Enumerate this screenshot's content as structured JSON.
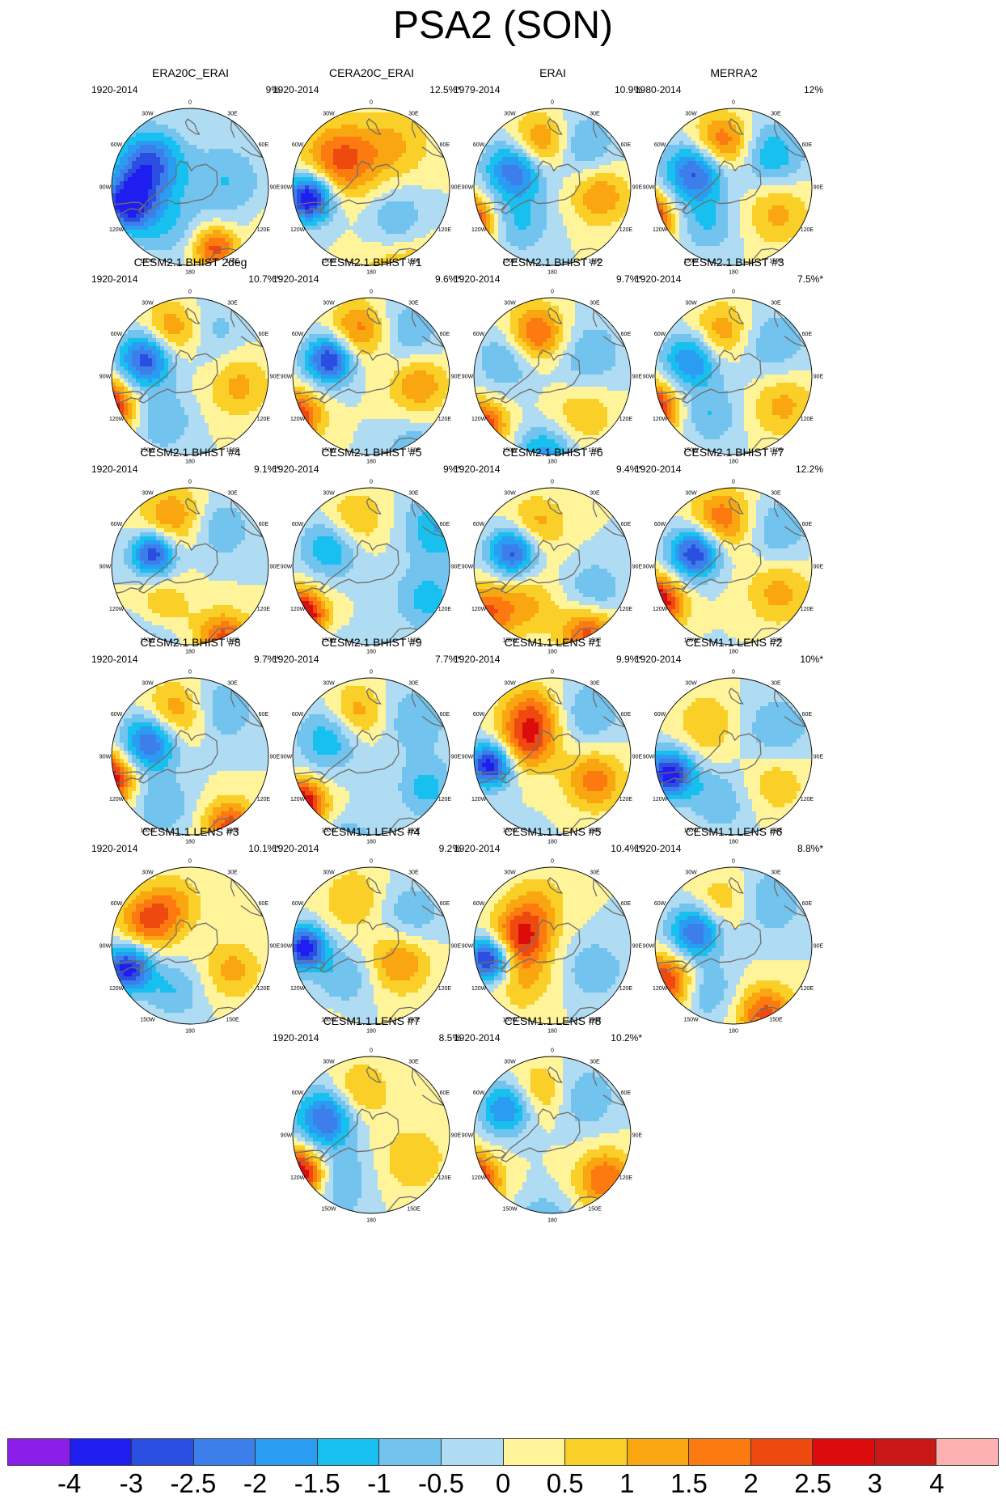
{
  "title": "PSA2 (SON)",
  "lon_labels": [
    "0",
    "30E",
    "60E",
    "90E",
    "120E",
    "150E",
    "180",
    "150W",
    "120W",
    "90W",
    "60W",
    "30W"
  ],
  "panels": [
    {
      "title": "ERA20C_ERAI",
      "period": "1920-2014",
      "pct": "9%",
      "pattern": [
        [
          80,
          -75,
          0.7,
          -3.2
        ],
        [
          150,
          62,
          0.8,
          3.0
        ],
        [
          58,
          -118,
          0.9,
          -2.8
        ],
        [
          82,
          22,
          0.6,
          2.2
        ],
        [
          55,
          -35,
          0.9,
          -1.0
        ],
        [
          45,
          100,
          1.0,
          -1.0
        ]
      ]
    },
    {
      "title": "CERA20C_ERAI",
      "period": "1920-2014",
      "pct": "12.5%*",
      "pattern": [
        [
          78,
          -80,
          0.65,
          -3.8
        ],
        [
          140,
          20,
          1.2,
          1.8
        ],
        [
          50,
          -130,
          1.0,
          2.2
        ],
        [
          50,
          40,
          0.8,
          -1.0
        ],
        [
          60,
          150,
          1.0,
          1.0
        ]
      ]
    },
    {
      "title": "ERAI",
      "period": "1979-2014",
      "pct": "10.9%",
      "pattern": [
        [
          118,
          -68,
          0.7,
          3.6
        ],
        [
          50,
          -115,
          0.8,
          -2.6
        ],
        [
          55,
          -165,
          0.8,
          2.0
        ],
        [
          60,
          -40,
          0.8,
          -1.0
        ],
        [
          60,
          80,
          0.8,
          1.5
        ],
        [
          62,
          145,
          0.9,
          -1.2
        ]
      ]
    },
    {
      "title": "MERRA2",
      "period": "1980-2014",
      "pct": "12%",
      "pattern": [
        [
          118,
          -70,
          0.7,
          3.8
        ],
        [
          50,
          -112,
          0.8,
          -2.8
        ],
        [
          55,
          -165,
          0.8,
          2.2
        ],
        [
          62,
          60,
          0.9,
          1.2
        ],
        [
          60,
          130,
          0.9,
          -1.5
        ],
        [
          55,
          -35,
          0.8,
          -1.0
        ]
      ]
    },
    {
      "title": "CESM2.1 BHIST 2deg",
      "period": "1920-2014",
      "pct": "10.7%*",
      "pattern": [
        [
          115,
          -70,
          0.75,
          3.8
        ],
        [
          58,
          -112,
          0.75,
          -3.0
        ],
        [
          58,
          -160,
          0.85,
          2.0
        ],
        [
          60,
          80,
          0.9,
          1.2
        ],
        [
          55,
          160,
          1.0,
          -1.0
        ],
        [
          65,
          -30,
          0.8,
          -1.0
        ]
      ]
    },
    {
      "title": "CESM2.1 BHIST #1",
      "period": "1920-2014",
      "pct": "9.6%*",
      "pattern": [
        [
          55,
          -112,
          0.65,
          -3.2
        ],
        [
          105,
          -62,
          0.7,
          2.5
        ],
        [
          58,
          -165,
          0.8,
          1.8
        ],
        [
          110,
          30,
          0.8,
          -1.0
        ],
        [
          60,
          80,
          0.8,
          1.5
        ],
        [
          70,
          140,
          0.9,
          -1.0
        ]
      ]
    },
    {
      "title": "CESM2.1 BHIST #2",
      "period": "1920-2014",
      "pct": "9.7%*",
      "pattern": [
        [
          110,
          -55,
          0.7,
          2.8
        ],
        [
          100,
          -5,
          0.8,
          -1.8
        ],
        [
          55,
          -160,
          0.8,
          2.2
        ],
        [
          60,
          -110,
          0.8,
          -1.2
        ],
        [
          60,
          40,
          0.9,
          1.0
        ],
        [
          50,
          120,
          1.0,
          -1.0
        ]
      ]
    },
    {
      "title": "CESM2.1 BHIST #3",
      "period": "1920-2014",
      "pct": "7.5%*",
      "pattern": [
        [
          110,
          -68,
          0.7,
          3.2
        ],
        [
          55,
          -112,
          0.75,
          -2.2
        ],
        [
          55,
          -165,
          0.8,
          1.6
        ],
        [
          70,
          60,
          0.9,
          1.2
        ],
        [
          60,
          130,
          1.0,
          -1.0
        ],
        [
          55,
          -30,
          0.8,
          -1.0
        ]
      ]
    },
    {
      "title": "CESM2.1 BHIST #4",
      "period": "1920-2014",
      "pct": "9.1%*",
      "pattern": [
        [
          48,
          -108,
          0.6,
          -3.0
        ],
        [
          100,
          25,
          0.75,
          2.2
        ],
        [
          65,
          -160,
          0.85,
          1.5
        ],
        [
          60,
          -35,
          0.8,
          1.0
        ],
        [
          60,
          140,
          0.8,
          -1.0
        ],
        [
          110,
          -30,
          0.9,
          -1.0
        ]
      ]
    },
    {
      "title": "CESM2.1 BHIST #5",
      "period": "1920-2014",
      "pct": "9%*",
      "pattern": [
        [
          108,
          -55,
          0.7,
          3.8
        ],
        [
          145,
          -25,
          0.9,
          -1.8
        ],
        [
          55,
          -115,
          0.8,
          -1.6
        ],
        [
          60,
          -160,
          0.8,
          1.2
        ],
        [
          80,
          60,
          0.9,
          -1.2
        ],
        [
          95,
          120,
          0.9,
          -1.5
        ]
      ]
    },
    {
      "title": "CESM2.1 BHIST #6",
      "period": "1920-2014",
      "pct": "9.4%*",
      "pattern": [
        [
          52,
          -110,
          0.65,
          -2.8
        ],
        [
          100,
          -55,
          0.8,
          2.0
        ],
        [
          95,
          28,
          0.75,
          2.2
        ],
        [
          55,
          -160,
          0.8,
          1.2
        ],
        [
          60,
          60,
          0.8,
          -1.0
        ],
        [
          55,
          -30,
          0.8,
          1.0
        ]
      ]
    },
    {
      "title": "CESM2.1 BHIST #7",
      "period": "1920-2014",
      "pct": "12.2%",
      "pattern": [
        [
          108,
          -65,
          0.75,
          3.4
        ],
        [
          50,
          -110,
          0.7,
          -3.2
        ],
        [
          150,
          -10,
          0.7,
          -1.8
        ],
        [
          58,
          -165,
          0.85,
          2.0
        ],
        [
          65,
          60,
          0.9,
          1.2
        ],
        [
          70,
          130,
          0.9,
          -1.0
        ]
      ]
    },
    {
      "title": "CESM2.1 BHIST #8",
      "period": "1920-2014",
      "pct": "9.7%*",
      "pattern": [
        [
          110,
          -75,
          0.75,
          3.5
        ],
        [
          52,
          -110,
          0.75,
          -2.8
        ],
        [
          98,
          30,
          0.7,
          2.2
        ],
        [
          55,
          -160,
          0.85,
          1.6
        ],
        [
          70,
          145,
          0.9,
          -1.0
        ],
        [
          70,
          -30,
          0.8,
          -1.0
        ]
      ]
    },
    {
      "title": "CESM2.1 BHIST #9",
      "period": "1920-2014",
      "pct": "7.7%*",
      "pattern": [
        [
          105,
          -55,
          0.65,
          3.4
        ],
        [
          125,
          -15,
          0.75,
          -1.8
        ],
        [
          55,
          -115,
          0.85,
          -1.6
        ],
        [
          55,
          -160,
          0.8,
          1.5
        ],
        [
          80,
          60,
          0.8,
          -1.2
        ],
        [
          70,
          130,
          0.9,
          -1.0
        ]
      ]
    },
    {
      "title": "CESM1.1 LENS #1",
      "period": "1920-2014",
      "pct": "9.9%*",
      "pattern": [
        [
          78,
          -82,
          0.6,
          -3.4
        ],
        [
          35,
          -120,
          0.8,
          2.0
        ],
        [
          60,
          -155,
          0.8,
          1.6
        ],
        [
          140,
          -20,
          0.8,
          -1.0
        ],
        [
          60,
          60,
          0.8,
          1.8
        ],
        [
          70,
          140,
          0.9,
          -1.0
        ]
      ]
    },
    {
      "title": "CESM1.1 LENS #2",
      "period": "1920-2014",
      "pct": "10%*",
      "pattern": [
        [
          82,
          -75,
          0.65,
          -3.4
        ],
        [
          140,
          -30,
          0.9,
          1.2
        ],
        [
          60,
          60,
          0.9,
          1.0
        ],
        [
          50,
          -140,
          0.9,
          1.0
        ],
        [
          60,
          120,
          1.0,
          -1.0
        ],
        [
          60,
          -20,
          0.9,
          -1.0
        ]
      ]
    },
    {
      "title": "CESM1.1 LENS #3",
      "period": "1920-2014",
      "pct": "10.1%*",
      "pattern": [
        [
          82,
          -70,
          0.65,
          -3.3
        ],
        [
          60,
          -120,
          0.8,
          2.0
        ],
        [
          140,
          -30,
          0.8,
          1.2
        ],
        [
          55,
          -160,
          0.8,
          1.0
        ],
        [
          60,
          60,
          0.8,
          1.2
        ],
        [
          60,
          -20,
          0.8,
          -1.0
        ]
      ]
    },
    {
      "title": "CESM1.1 LENS #4",
      "period": "1920-2014",
      "pct": "9.2%",
      "pattern": [
        [
          82,
          -88,
          0.6,
          -3.3
        ],
        [
          40,
          60,
          0.85,
          1.6
        ],
        [
          140,
          -30,
          0.8,
          1.0
        ],
        [
          60,
          -160,
          0.9,
          1.0
        ],
        [
          60,
          130,
          0.9,
          -1.0
        ],
        [
          50,
          -40,
          0.8,
          -1.0
        ]
      ]
    },
    {
      "title": "CESM1.1 LENS #5",
      "period": "1920-2014",
      "pct": "10.4%*",
      "pattern": [
        [
          80,
          -78,
          0.6,
          -3.5
        ],
        [
          40,
          -105,
          0.8,
          2.5
        ],
        [
          140,
          -20,
          0.8,
          1.0
        ],
        [
          55,
          -160,
          0.8,
          1.0
        ],
        [
          60,
          60,
          0.8,
          -1.0
        ],
        [
          55,
          -40,
          0.8,
          1.0
        ]
      ]
    },
    {
      "title": "CESM1.1 LENS #6",
      "period": "1920-2014",
      "pct": "8.8%*",
      "pattern": [
        [
          95,
          -62,
          0.75,
          2.6
        ],
        [
          50,
          -110,
          0.7,
          -2.6
        ],
        [
          95,
          25,
          0.8,
          2.2
        ],
        [
          55,
          -165,
          0.8,
          1.0
        ],
        [
          70,
          140,
          0.9,
          -1.0
        ],
        [
          65,
          -30,
          0.8,
          -1.0
        ]
      ]
    },
    {
      "title": "CESM1.1 LENS #7",
      "period": "1920-2014",
      "pct": "8.5%",
      "pattern": [
        [
          102,
          -62,
          0.7,
          3.3
        ],
        [
          60,
          -110,
          0.8,
          -2.6
        ],
        [
          140,
          -20,
          0.9,
          -1.0
        ],
        [
          55,
          -165,
          0.8,
          1.2
        ],
        [
          60,
          60,
          0.9,
          1.0
        ],
        [
          65,
          -35,
          0.8,
          -1.0
        ]
      ]
    },
    {
      "title": "CESM1.1 LENS #8",
      "period": "1920-2014",
      "pct": "10.2%*",
      "pattern": [
        [
          118,
          -60,
          0.75,
          3.6
        ],
        [
          65,
          -120,
          0.7,
          -2.2
        ],
        [
          85,
          50,
          0.8,
          2.0
        ],
        [
          55,
          -165,
          0.8,
          1.2
        ],
        [
          110,
          -5,
          0.8,
          -1.0
        ],
        [
          60,
          140,
          0.9,
          -1.0
        ]
      ]
    }
  ],
  "colorbar": {
    "colors": [
      "#8b1ee8",
      "#1e1ef0",
      "#2a4ee0",
      "#3c7fea",
      "#2a9cf2",
      "#18c0f0",
      "#73c3ef",
      "#afdcf2",
      "#fff49a",
      "#fad028",
      "#f9a610",
      "#fd7a10",
      "#ee4a10",
      "#dd0c0c",
      "#c81818",
      "#feb1b1"
    ],
    "labels": [
      "-4",
      "-3",
      "-2.5",
      "-2",
      "-1.5",
      "-1",
      "-0.5",
      "0",
      "0.5",
      "1",
      "1.5",
      "2",
      "2.5",
      "3",
      "4"
    ]
  }
}
